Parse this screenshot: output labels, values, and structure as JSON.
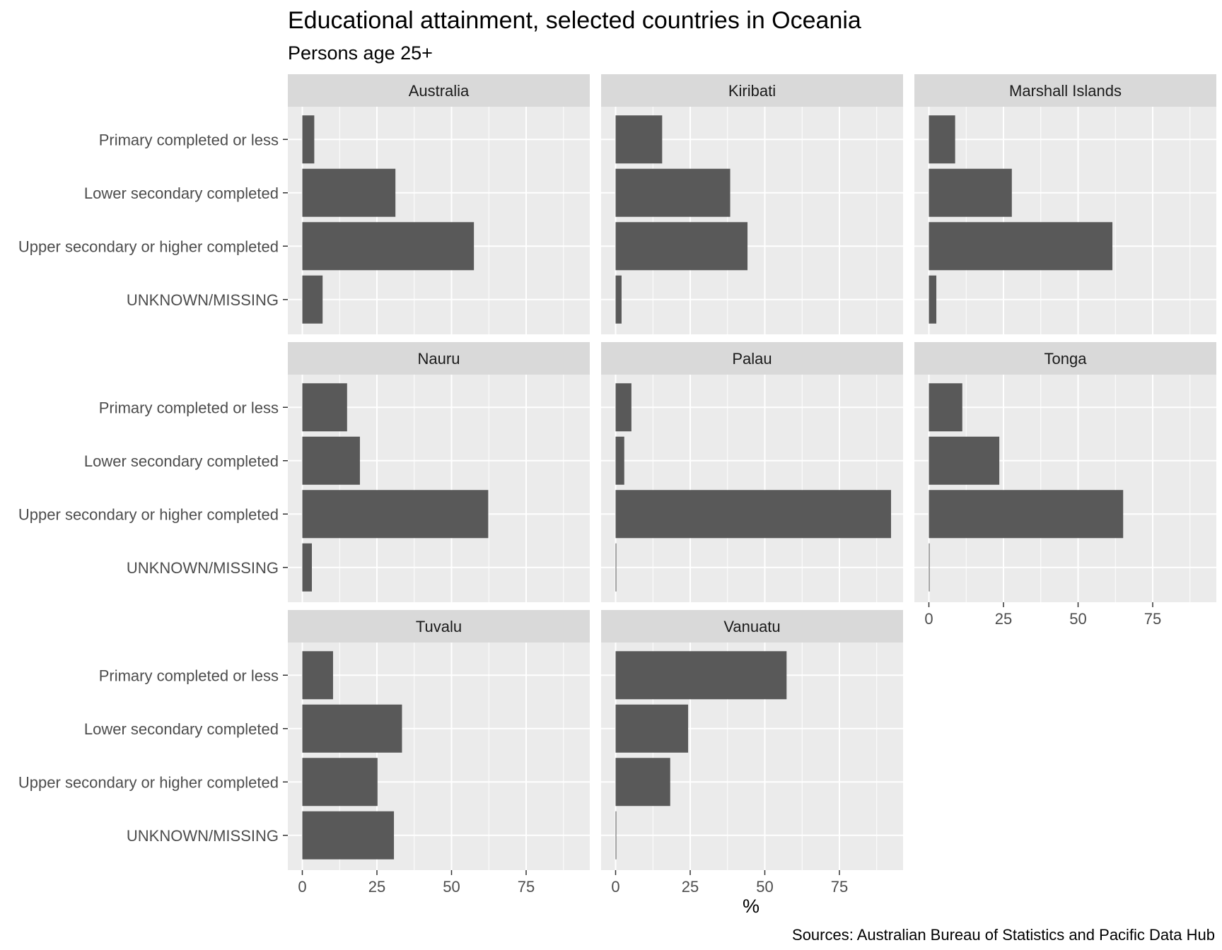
{
  "chart_data": {
    "type": "bar",
    "orientation": "horizontal",
    "title": "Educational attainment, selected countries in Oceania",
    "subtitle": "Persons age 25+",
    "xlabel": "%",
    "ylabel": "",
    "caption": "Sources: Australian Bureau of Statistics and Pacific Data Hub",
    "xlim": [
      0,
      95
    ],
    "x_ticks": [
      0,
      25,
      50,
      75
    ],
    "grid": true,
    "categories": [
      "Primary completed or less",
      "Lower secondary completed",
      "Upper secondary or higher completed",
      "UNKNOWN/MISSING"
    ],
    "facets": [
      {
        "name": "Australia",
        "values": [
          4.0,
          31.2,
          57.5,
          6.8
        ]
      },
      {
        "name": "Kiribati",
        "values": [
          15.6,
          38.4,
          44.2,
          2.0
        ]
      },
      {
        "name": "Marshall Islands",
        "values": [
          8.8,
          27.8,
          61.5,
          2.5
        ]
      },
      {
        "name": "Nauru",
        "values": [
          15.0,
          19.3,
          62.3,
          3.2
        ]
      },
      {
        "name": "Palau",
        "values": [
          5.3,
          2.9,
          92.3,
          0.0
        ]
      },
      {
        "name": "Tonga",
        "values": [
          11.2,
          23.6,
          65.1,
          0.2
        ]
      },
      {
        "name": "Tuvalu",
        "values": [
          10.3,
          33.4,
          25.2,
          30.7
        ]
      },
      {
        "name": "Vanuatu",
        "values": [
          57.3,
          24.3,
          18.3,
          0.2
        ]
      }
    ],
    "colors": {
      "bar": "#595959",
      "panel": "#ebebeb",
      "strip": "#d9d9d9",
      "grid": "#ffffff"
    }
  }
}
